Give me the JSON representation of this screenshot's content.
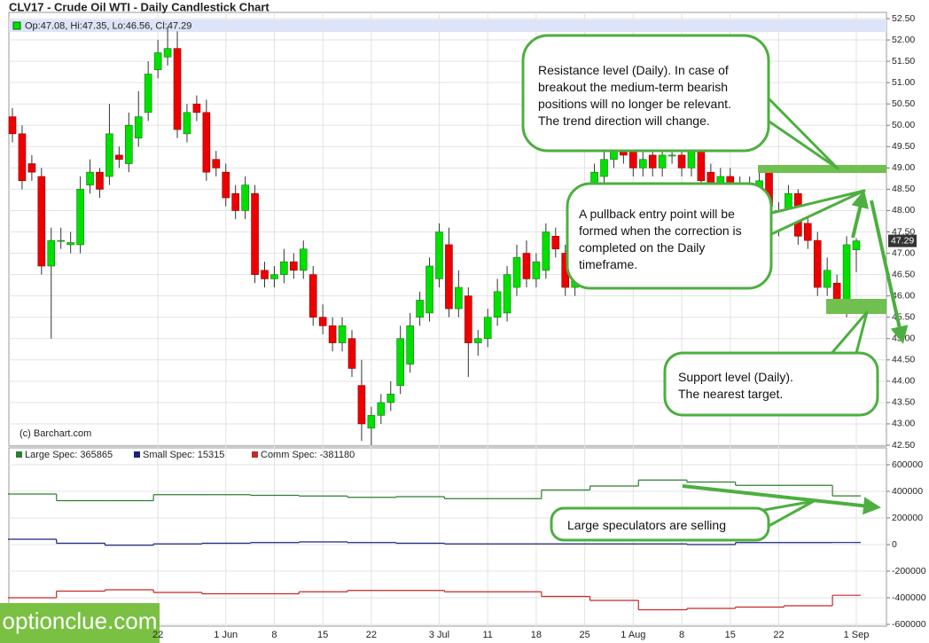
{
  "chart_data": [
    {
      "type": "candlestick",
      "title": "CLV17 - Crude Oil WTI - Daily Candlestick Chart",
      "legend_text": "Op:47.08, Hi:47.35, Lo:46.56, Cl:47.29",
      "last_price_label": "47.29",
      "credit": "(c) Barchart.com",
      "up_color": "#00e000",
      "down_color": "#ee0000",
      "categories": [
        null,
        null,
        null,
        null,
        null,
        null,
        null,
        null,
        null,
        null,
        null,
        null,
        null,
        null,
        null,
        "22",
        null,
        null,
        null,
        null,
        null,
        null,
        "1 Jun",
        null,
        null,
        null,
        null,
        "8",
        null,
        null,
        null,
        null,
        "15",
        null,
        null,
        null,
        null,
        "22",
        null,
        null,
        null,
        null,
        null,
        null,
        "3 Jul",
        null,
        null,
        null,
        null,
        "11",
        null,
        null,
        null,
        null,
        "18",
        null,
        null,
        null,
        null,
        "25",
        null,
        null,
        null,
        null,
        "1 Aug",
        null,
        null,
        null,
        null,
        "8",
        null,
        null,
        null,
        null,
        "15",
        null,
        null,
        null,
        null,
        "22",
        null,
        null,
        null,
        null,
        null,
        null,
        null,
        "1 Sep"
      ],
      "open": [
        50.2,
        49.8,
        49.1,
        48.8,
        46.7,
        47.3,
        47.2,
        47.2,
        48.6,
        48.9,
        48.8,
        49.3,
        49.1,
        49.7,
        50.3,
        51.3,
        51.6,
        51.8,
        49.8,
        50.5,
        50.3,
        49.2,
        48.9,
        48.4,
        48.0,
        48.4,
        46.6,
        46.4,
        46.5,
        46.8,
        46.6,
        46.5,
        45.5,
        45.3,
        44.9,
        45.0,
        43.9,
        42.9,
        43.2,
        43.5,
        43.9,
        44.4,
        45.5,
        45.6,
        46.4,
        47.2,
        45.7,
        46.0,
        44.9,
        45.0,
        45.5,
        45.6,
        46.2,
        47.0,
        46.4,
        46.6,
        47.4,
        47.0,
        46.2,
        47.4,
        48.3,
        48.8,
        49.2,
        49.4,
        49.4,
        49.0,
        49.3,
        49.0,
        49.3,
        49.3,
        49.0,
        49.4,
        48.9,
        48.6,
        48.8,
        48.6,
        48.4,
        48.5,
        48.9,
        48.0,
        47.9,
        48.4,
        47.7,
        47.3,
        46.2,
        46.3,
        45.6,
        47.08
      ],
      "high": [
        50.4,
        50.0,
        49.3,
        49.0,
        47.6,
        47.6,
        47.5,
        48.8,
        49.2,
        49.0,
        50.5,
        49.5,
        50.3,
        50.8,
        51.5,
        52.0,
        52.3,
        52.2,
        50.5,
        50.7,
        50.6,
        49.4,
        49.1,
        48.6,
        48.8,
        48.6,
        46.8,
        46.7,
        47.1,
        47.0,
        47.3,
        46.7,
        45.8,
        45.5,
        45.5,
        45.2,
        44.5,
        43.4,
        43.7,
        44.0,
        45.3,
        45.6,
        46.1,
        46.9,
        47.7,
        47.6,
        46.6,
        46.2,
        45.2,
        45.7,
        46.4,
        46.7,
        47.2,
        47.3,
        47.0,
        47.7,
        47.6,
        47.2,
        47.7,
        48.4,
        49.1,
        49.4,
        49.6,
        49.6,
        49.6,
        49.4,
        49.5,
        49.5,
        49.5,
        49.5,
        49.6,
        49.6,
        49.1,
        49.0,
        49.0,
        48.8,
        48.8,
        48.9,
        49.0,
        48.2,
        48.6,
        48.5,
        47.9,
        47.5,
        46.9,
        46.5,
        47.4,
        47.35
      ],
      "low": [
        49.6,
        48.5,
        48.7,
        46.5,
        45.0,
        47.1,
        47.0,
        47.0,
        48.4,
        48.3,
        48.6,
        49.0,
        48.9,
        49.5,
        50.1,
        51.1,
        51.4,
        49.7,
        49.6,
        50.1,
        48.7,
        48.8,
        48.1,
        47.8,
        47.8,
        46.3,
        46.2,
        46.2,
        46.3,
        46.4,
        46.4,
        45.3,
        45.1,
        44.7,
        44.7,
        44.1,
        42.6,
        42.5,
        43.0,
        43.3,
        43.7,
        44.2,
        45.3,
        45.4,
        46.2,
        45.5,
        45.5,
        44.1,
        44.6,
        44.8,
        45.3,
        45.4,
        46.0,
        46.2,
        46.2,
        46.4,
        46.9,
        46.0,
        46.0,
        47.2,
        48.1,
        48.6,
        49.0,
        49.1,
        48.8,
        48.8,
        48.8,
        48.8,
        49.1,
        48.8,
        48.8,
        48.5,
        48.4,
        48.4,
        48.3,
        48.2,
        48.2,
        48.3,
        47.9,
        47.4,
        47.7,
        47.2,
        47.1,
        46.0,
        46.0,
        45.7,
        45.5,
        46.56
      ],
      "close": [
        49.8,
        48.7,
        48.9,
        46.7,
        47.3,
        47.3,
        47.25,
        48.5,
        48.9,
        48.5,
        49.8,
        49.2,
        50.0,
        50.2,
        51.2,
        51.7,
        51.8,
        49.9,
        50.3,
        50.3,
        48.9,
        49.0,
        48.3,
        48.0,
        48.6,
        46.5,
        46.4,
        46.5,
        46.8,
        46.6,
        47.1,
        45.5,
        45.3,
        44.9,
        45.3,
        44.3,
        43.0,
        43.2,
        43.5,
        43.7,
        45.0,
        45.3,
        45.9,
        46.7,
        47.5,
        45.7,
        46.2,
        44.9,
        45.0,
        45.5,
        46.1,
        46.5,
        46.9,
        46.4,
        46.8,
        47.5,
        47.1,
        46.2,
        47.5,
        48.2,
        48.9,
        49.2,
        49.4,
        49.3,
        49.0,
        49.2,
        49.0,
        49.3,
        49.3,
        49.0,
        49.4,
        48.7,
        48.6,
        48.8,
        48.5,
        48.4,
        48.6,
        48.7,
        48.1,
        47.6,
        48.4,
        47.4,
        47.3,
        46.2,
        46.6,
        45.9,
        47.2,
        47.29
      ],
      "ylim": [
        42.5,
        52.5
      ],
      "yticks": [
        {
          "value": 42.5,
          "label": "42.50"
        },
        {
          "value": 43,
          "label": "43.00"
        },
        {
          "value": 43.5,
          "label": "43.50"
        },
        {
          "value": 44,
          "label": "44.00"
        },
        {
          "value": 44.5,
          "label": "44.50"
        },
        {
          "value": 45,
          "label": "45.00"
        },
        {
          "value": 45.5,
          "label": "45.50"
        },
        {
          "value": 46,
          "label": "46.00"
        },
        {
          "value": 46.5,
          "label": "46.50"
        },
        {
          "value": 47,
          "label": "47.00"
        },
        {
          "value": 47.5,
          "label": "47.50"
        },
        {
          "value": 48,
          "label": "48.00"
        },
        {
          "value": 48.5,
          "label": "48.50"
        },
        {
          "value": 49,
          "label": "49.00"
        },
        {
          "value": 49.5,
          "label": "49.50"
        },
        {
          "value": 50,
          "label": "50.00"
        },
        {
          "value": 50.5,
          "label": "50.50"
        },
        {
          "value": 51,
          "label": "51.00"
        },
        {
          "value": 51.5,
          "label": "51.50"
        },
        {
          "value": 52,
          "label": "52.00"
        },
        {
          "value": 52.5,
          "label": "52.50"
        }
      ],
      "grid": true,
      "annotations": [
        {
          "lines": [
            "Resistance level (Daily). In case of",
            "breakout the medium-term bearish",
            "positions will no longer be relevant.",
            "The trend direction will change."
          ]
        },
        {
          "lines": [
            "A pullback entry point will be",
            "formed when the correction is",
            "completed on the Daily",
            "timeframe."
          ]
        },
        {
          "lines": [
            "Support level (Daily).",
            "The nearest target."
          ]
        }
      ]
    },
    {
      "type": "step",
      "series": [
        {
          "name": "Large Spec: 365865",
          "color": "#2e7d32",
          "values": [
            380000,
            330000,
            330000,
            375000,
            375000,
            370000,
            365000,
            355000,
            360000,
            345000,
            345000,
            410000,
            440000,
            485000,
            470000,
            445000,
            445000,
            365865
          ]
        },
        {
          "name": "Small Spec: 15315",
          "color": "#1a237e",
          "values": [
            40000,
            10000,
            -5000,
            5000,
            10000,
            15000,
            20000,
            15000,
            10000,
            5000,
            5000,
            5000,
            5000,
            5000,
            0,
            15000,
            15000,
            15315
          ]
        },
        {
          "name": "Comm Spec: -381180",
          "color": "#c62828",
          "values": [
            -400000,
            -350000,
            -340000,
            -360000,
            -370000,
            -370000,
            -355000,
            -345000,
            -345000,
            -355000,
            -355000,
            -390000,
            -420000,
            -490000,
            -480000,
            -470000,
            -460000,
            -381180
          ]
        }
      ],
      "ylim": [
        -600000,
        600000
      ],
      "yticks": [
        600000,
        400000,
        200000,
        0,
        -200000,
        -400000,
        -600000
      ],
      "grid": true,
      "annotation": "Large speculators are selling"
    },
    {
      "watermark": "optionclue.com"
    }
  ]
}
